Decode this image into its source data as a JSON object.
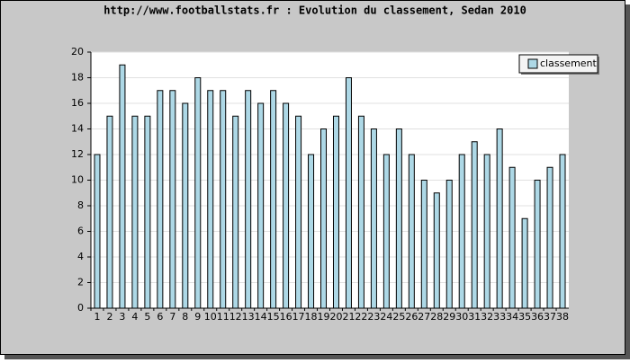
{
  "chart_data": {
    "type": "bar",
    "title": "http://www.footballstats.fr : Evolution du classement, Sedan 2010",
    "categories": [
      1,
      2,
      3,
      4,
      5,
      6,
      7,
      8,
      9,
      10,
      11,
      12,
      13,
      14,
      15,
      16,
      17,
      18,
      19,
      20,
      21,
      22,
      23,
      24,
      25,
      26,
      27,
      28,
      29,
      30,
      31,
      32,
      33,
      34,
      35,
      36,
      37,
      38
    ],
    "series": [
      {
        "name": "classement",
        "color": "#add8e6",
        "values": [
          12,
          15,
          19,
          15,
          15,
          17,
          17,
          16,
          18,
          17,
          17,
          15,
          17,
          16,
          17,
          16,
          15,
          12,
          14,
          15,
          18,
          15,
          14,
          12,
          14,
          12,
          10,
          9,
          10,
          12,
          13,
          12,
          14,
          11,
          7,
          10,
          11,
          12
        ]
      }
    ],
    "ylim": [
      0,
      20
    ],
    "yticks": [
      0,
      2,
      4,
      6,
      8,
      10,
      12,
      14,
      16,
      18,
      20
    ],
    "grid": true,
    "legend": "top-right"
  }
}
